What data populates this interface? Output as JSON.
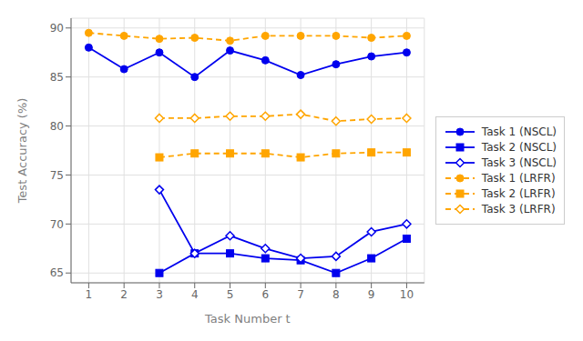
{
  "chart_data": {
    "type": "line",
    "xlabel": "Task Number t",
    "ylabel": "Test Accuracy (%)",
    "x": [
      1,
      2,
      3,
      4,
      5,
      6,
      7,
      8,
      9,
      10
    ],
    "xlim": [
      0.5,
      10.5
    ],
    "xticks": [
      1,
      2,
      3,
      4,
      5,
      6,
      7,
      8,
      9,
      10
    ],
    "ylim": [
      64,
      91
    ],
    "yticks": [
      65,
      70,
      75,
      80,
      85,
      90
    ],
    "grid": true,
    "legend": "right",
    "series": [
      {
        "name": "Task 1 (NSCL)",
        "color": "#0000ee",
        "marker": "circle",
        "line_style": "solid",
        "values": [
          88.0,
          85.8,
          87.5,
          85.0,
          87.7,
          86.7,
          85.2,
          86.3,
          87.1,
          87.5
        ]
      },
      {
        "name": "Task 2 (NSCL)",
        "color": "#0000ee",
        "marker": "square",
        "line_style": "solid",
        "values": [
          null,
          null,
          65.0,
          67.0,
          67.0,
          66.5,
          66.3,
          65.0,
          66.5,
          68.5
        ]
      },
      {
        "name": "Task 3 (NSCL)",
        "color": "#0000ee",
        "marker": "diamond",
        "line_style": "solid",
        "values": [
          null,
          null,
          73.5,
          67.0,
          68.8,
          67.5,
          66.5,
          66.7,
          69.2,
          70.0
        ]
      },
      {
        "name": "Task 1 (LRFR)",
        "color": "#ffa500",
        "marker": "circle",
        "line_style": "dashed",
        "values": [
          89.5,
          89.2,
          88.9,
          89.0,
          88.7,
          89.2,
          89.2,
          89.2,
          89.0,
          89.2
        ]
      },
      {
        "name": "Task 2 (LRFR)",
        "color": "#ffa500",
        "marker": "square",
        "line_style": "dashed",
        "values": [
          null,
          null,
          76.8,
          77.2,
          77.2,
          77.2,
          76.8,
          77.2,
          77.3,
          77.3
        ]
      },
      {
        "name": "Task 3 (LRFR)",
        "color": "#ffa500",
        "marker": "diamond",
        "line_style": "dashed",
        "values": [
          null,
          null,
          80.8,
          80.8,
          81.0,
          81.0,
          81.2,
          80.5,
          80.7,
          80.8
        ]
      }
    ]
  }
}
